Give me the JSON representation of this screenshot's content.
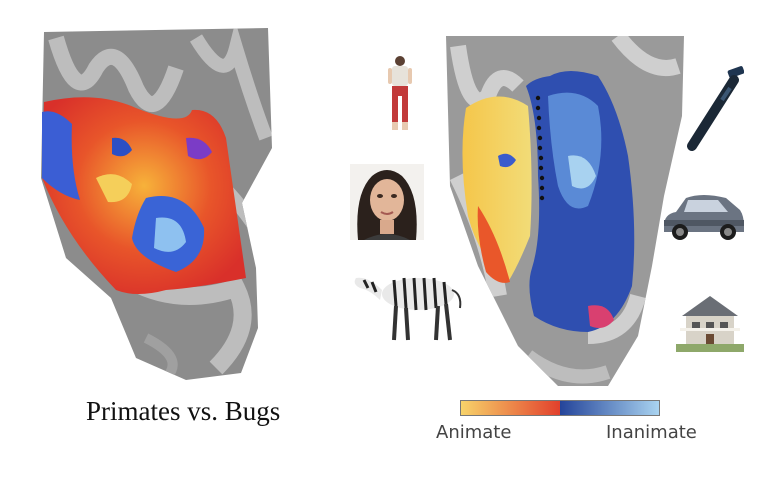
{
  "caption": "Primates vs. Bugs",
  "legend": {
    "left_label": "Animate",
    "right_label": "Inanimate",
    "colors": [
      "#f7d36a",
      "#e2402c",
      "#24449a",
      "#a9d3f0"
    ]
  },
  "stimuli": {
    "animate": [
      "person-icon",
      "face-icon",
      "zebra-icon"
    ],
    "inanimate": [
      "hammer-icon",
      "car-icon",
      "house-icon"
    ]
  }
}
